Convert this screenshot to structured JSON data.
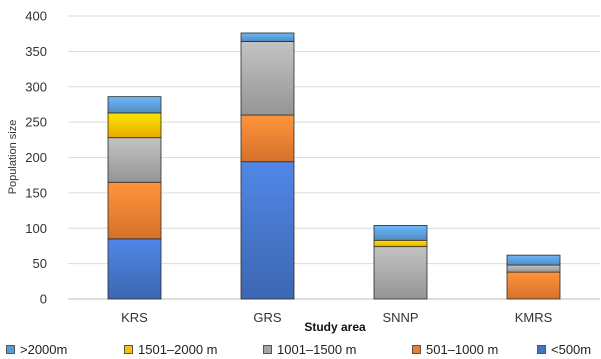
{
  "chart_data": {
    "type": "bar",
    "stacked": true,
    "categories": [
      "KRS",
      "GRS",
      "SNNP",
      "KMRS"
    ],
    "xlabel": "Study area",
    "ylabel": "Population size",
    "ylim": [
      0,
      400
    ],
    "yticks": [
      0,
      50,
      100,
      150,
      200,
      250,
      300,
      350,
      400
    ],
    "grid": true,
    "legend_position": "bottom",
    "series": [
      {
        "name": "<500m",
        "color": "#4472c4",
        "values": [
          85,
          194,
          0,
          0
        ]
      },
      {
        "name": "501–1000 m",
        "color": "#ed7d31",
        "values": [
          80,
          66,
          0,
          38
        ]
      },
      {
        "name": "1001–1500 m",
        "color": "#a5a5a5",
        "values": [
          63,
          104,
          74,
          10
        ]
      },
      {
        "name": "1501–2000 m",
        "color": "#ffc000",
        "values": [
          35,
          0,
          9,
          0
        ]
      },
      {
        "name": ">2000m",
        "color": "#5b9bd5",
        "values": [
          23,
          12,
          21,
          14
        ]
      }
    ],
    "legend_order": [
      ">2000m",
      "1501–2000 m",
      "1001–1500 m",
      "501–1000 m",
      "<500m"
    ]
  }
}
